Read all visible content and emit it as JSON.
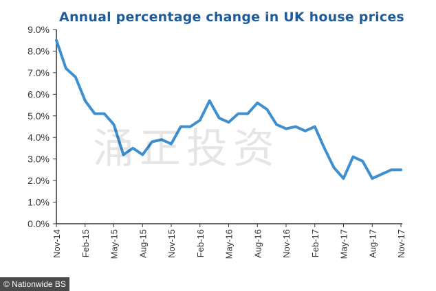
{
  "colors": {
    "title": "#1f5c99",
    "line": "#3d8fcf",
    "axis": "#333333"
  },
  "watermark": "涌正投资",
  "source": "© Nationwide BS",
  "chart_data": {
    "type": "line",
    "title": "Annual percentage change in UK house prices",
    "xlabel": "",
    "ylabel": "",
    "ylim": [
      0,
      9
    ],
    "y_ticks": [
      "0.0%",
      "1.0%",
      "2.0%",
      "3.0%",
      "4.0%",
      "5.0%",
      "6.0%",
      "7.0%",
      "8.0%",
      "9.0%"
    ],
    "x_tick_labels": [
      "Nov-14",
      "Feb-15",
      "May-15",
      "Aug-15",
      "Nov-15",
      "Feb-16",
      "May-16",
      "Aug-16",
      "Nov-16",
      "Feb-17",
      "May-17",
      "Aug-17",
      "Nov-17"
    ],
    "grid": false,
    "legend": "none",
    "series": [
      {
        "x": [
          "Nov-14",
          "Dec-14",
          "Jan-15",
          "Feb-15",
          "Mar-15",
          "Apr-15",
          "May-15",
          "Jun-15",
          "Jul-15",
          "Aug-15",
          "Sep-15",
          "Oct-15",
          "Nov-15",
          "Dec-15",
          "Jan-16",
          "Feb-16",
          "Mar-16",
          "Apr-16",
          "May-16",
          "Jun-16",
          "Jul-16",
          "Aug-16",
          "Sep-16",
          "Oct-16",
          "Nov-16",
          "Dec-16",
          "Jan-17",
          "Feb-17",
          "Mar-17",
          "Apr-17",
          "May-17",
          "Jun-17",
          "Jul-17",
          "Aug-17",
          "Sep-17",
          "Oct-17",
          "Nov-17"
        ],
        "values": [
          8.5,
          7.2,
          6.8,
          5.7,
          5.1,
          5.1,
          4.6,
          3.2,
          3.5,
          3.2,
          3.8,
          3.9,
          3.7,
          4.5,
          4.5,
          4.8,
          5.7,
          4.9,
          4.7,
          5.1,
          5.1,
          5.6,
          5.3,
          4.6,
          4.4,
          4.5,
          4.3,
          4.5,
          3.5,
          2.6,
          2.1,
          3.1,
          2.9,
          2.1,
          2.3,
          2.5,
          2.5
        ]
      }
    ]
  }
}
